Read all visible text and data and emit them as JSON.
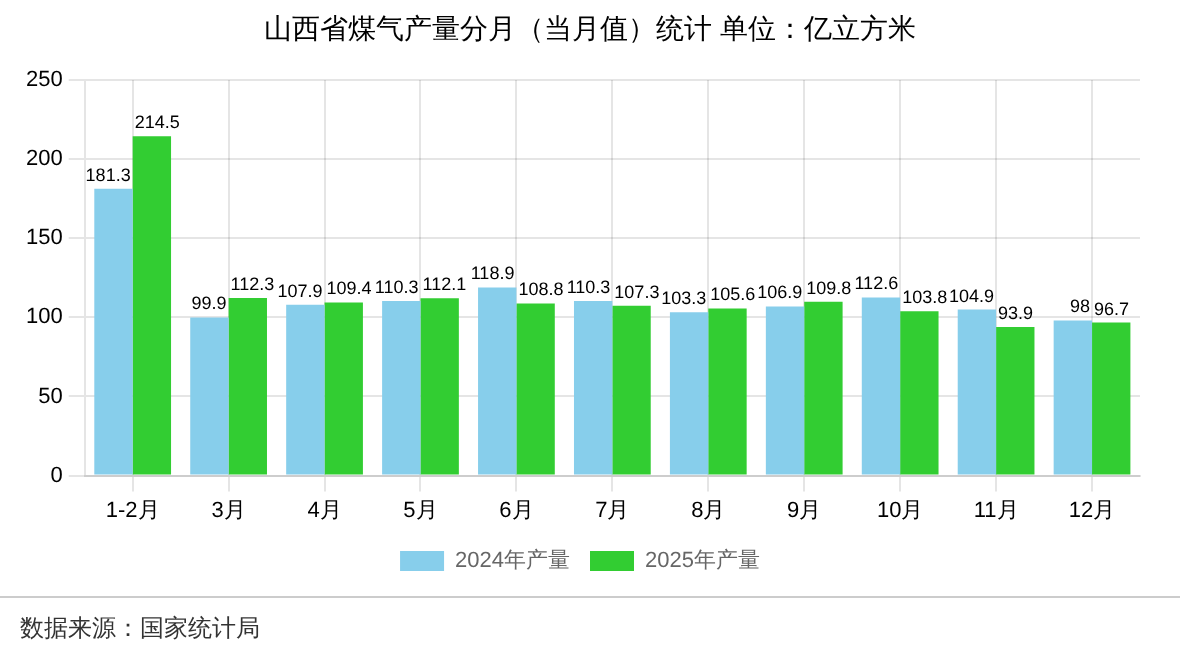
{
  "chart_data": {
    "type": "bar",
    "title": "山西省煤气产量分月（当月值）统计  单位：亿立方米",
    "categories": [
      "1-2月",
      "3月",
      "4月",
      "5月",
      "6月",
      "7月",
      "8月",
      "9月",
      "10月",
      "11月",
      "12月"
    ],
    "series": [
      {
        "name": "2024年产量",
        "color": "#87ceeb",
        "values": [
          181.3,
          99.9,
          107.9,
          110.3,
          118.9,
          110.3,
          103.3,
          106.9,
          112.6,
          104.9,
          98
        ]
      },
      {
        "name": "2025年产量",
        "color": "#32cd32",
        "values": [
          214.5,
          112.3,
          109.4,
          112.1,
          108.8,
          107.3,
          105.6,
          109.8,
          103.8,
          93.9,
          96.7
        ]
      }
    ],
    "ylim": [
      0,
      250
    ],
    "yticks": [
      0,
      50,
      100,
      150,
      200,
      250
    ],
    "grid": true,
    "legend": "bottom",
    "data_labels": true,
    "annotations": [
      "数据来源：国家统计局"
    ]
  }
}
